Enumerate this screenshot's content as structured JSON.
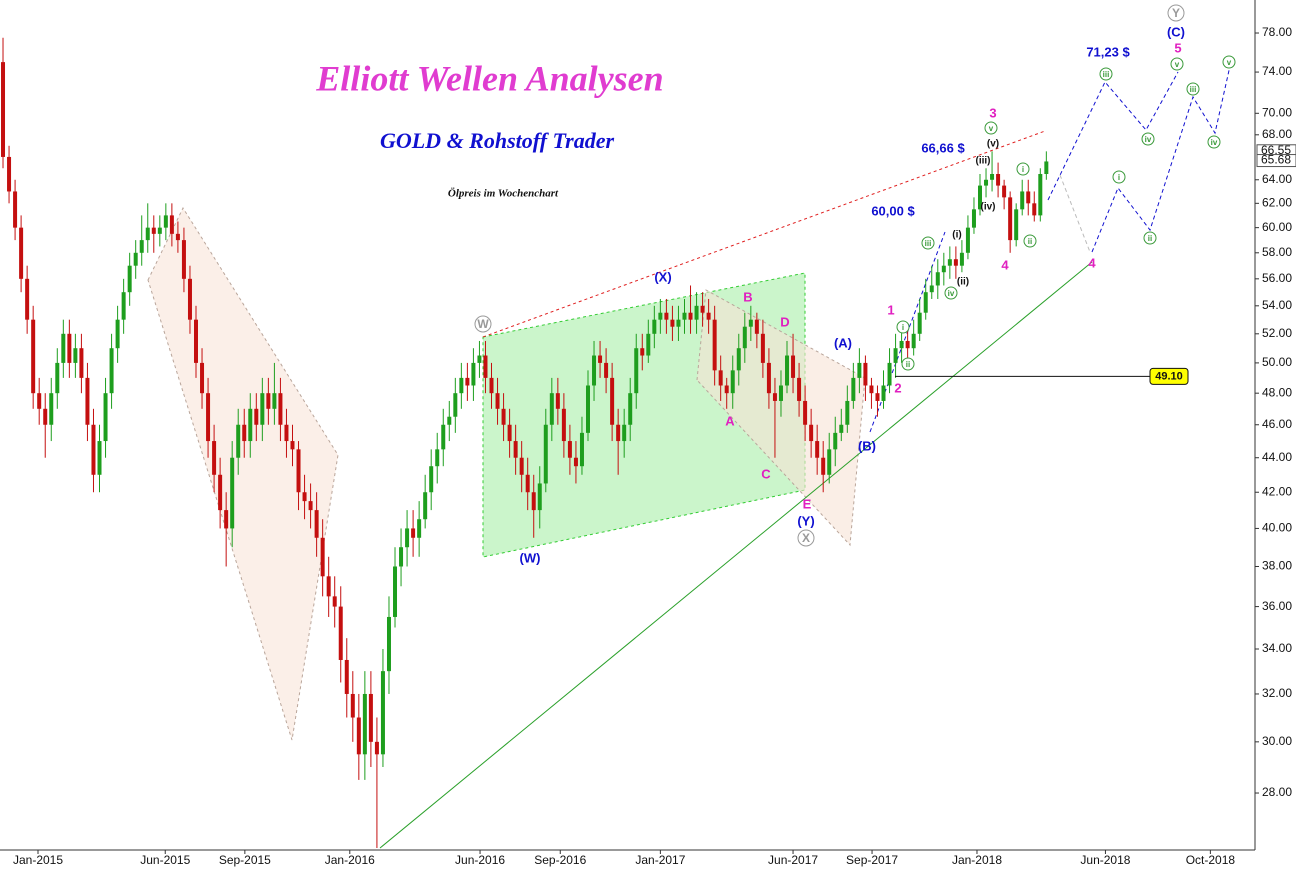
{
  "chart_data": {
    "type": "candlestick",
    "title": "Elliott Wellen Analysen",
    "subtitle": "GOLD & Rohstoff Trader",
    "caption": "Ölpreis im Wochenchart",
    "up_color": "#1e9e1e",
    "down_color": "#c40f0f",
    "log_scale": true,
    "ylim": [
      25.93,
      81.55
    ],
    "xlim": [
      -0.5,
      207.6
    ],
    "yticks": [
      {
        "value": 28,
        "label": "28.00"
      },
      {
        "value": 30,
        "label": "30.00"
      },
      {
        "value": 32,
        "label": "32.00"
      },
      {
        "value": 34,
        "label": "34.00"
      },
      {
        "value": 36,
        "label": "36.00"
      },
      {
        "value": 38,
        "label": "38.00"
      },
      {
        "value": 40,
        "label": "40.00"
      },
      {
        "value": 42,
        "label": "42.00"
      },
      {
        "value": 44,
        "label": "44.00"
      },
      {
        "value": 46,
        "label": "46.00"
      },
      {
        "value": 48,
        "label": "48.00"
      },
      {
        "value": 50,
        "label": "50.00"
      },
      {
        "value": 52,
        "label": "52.00"
      },
      {
        "value": 54,
        "label": "54.00"
      },
      {
        "value": 56,
        "label": "56.00"
      },
      {
        "value": 58,
        "label": "58.00"
      },
      {
        "value": 60,
        "label": "60.00"
      },
      {
        "value": 62,
        "label": "62.00"
      },
      {
        "value": 64,
        "label": "64.00"
      },
      {
        "value": 68,
        "label": "68.00"
      },
      {
        "value": 70,
        "label": "70.00"
      },
      {
        "value": 74,
        "label": "74.00"
      },
      {
        "value": 78,
        "label": "78.00"
      }
    ],
    "last_prices": [
      66.55,
      65.68
    ],
    "xticks": [
      {
        "value": 5.8,
        "label": "Jan-2015"
      },
      {
        "value": 26.9,
        "label": "Jun-2015"
      },
      {
        "value": 40.1,
        "label": "Sep-2015"
      },
      {
        "value": 57.5,
        "label": "Jan-2016"
      },
      {
        "value": 79.1,
        "label": "Jun-2016"
      },
      {
        "value": 92.4,
        "label": "Sep-2016"
      },
      {
        "value": 109,
        "label": "Jan-2017"
      },
      {
        "value": 131,
        "label": "Jun-2017"
      },
      {
        "value": 144.1,
        "label": "Sep-2017"
      },
      {
        "value": 161.5,
        "label": "Jan-2018"
      },
      {
        "value": 182.8,
        "label": "Jun-2018"
      },
      {
        "value": 200.2,
        "label": "Oct-2018"
      }
    ],
    "level": {
      "value": 49.1,
      "label": "49.10"
    },
    "ohlc": [
      [
        75,
        77.5,
        65,
        66
      ],
      [
        66,
        67,
        62,
        63
      ],
      [
        63,
        64,
        59,
        60
      ],
      [
        60,
        61,
        55,
        56
      ],
      [
        56,
        57,
        52,
        53
      ],
      [
        53,
        54,
        47,
        48
      ],
      [
        48,
        49,
        46,
        47
      ],
      [
        47,
        48,
        44,
        46
      ],
      [
        46,
        49,
        45,
        48
      ],
      [
        48,
        51,
        47,
        50
      ],
      [
        50,
        53,
        49,
        52
      ],
      [
        52,
        53,
        49,
        50
      ],
      [
        50,
        52,
        49,
        51
      ],
      [
        51,
        52,
        48,
        49
      ],
      [
        49,
        50,
        45,
        46
      ],
      [
        46,
        47,
        42,
        43
      ],
      [
        43,
        46,
        42,
        45
      ],
      [
        45,
        49,
        44,
        48
      ],
      [
        48,
        52,
        47,
        51
      ],
      [
        51,
        54,
        50,
        53
      ],
      [
        53,
        56,
        52,
        55
      ],
      [
        55,
        58,
        54,
        57
      ],
      [
        57,
        59,
        56,
        58
      ],
      [
        58,
        61,
        57,
        59
      ],
      [
        59,
        62,
        58,
        60
      ],
      [
        60,
        61,
        58,
        59.5
      ],
      [
        59.5,
        61,
        58.5,
        60
      ],
      [
        60,
        62,
        59,
        61
      ],
      [
        61,
        62,
        58.5,
        59.5
      ],
      [
        59.5,
        60.5,
        58,
        59
      ],
      [
        59,
        60,
        55,
        56
      ],
      [
        56,
        57,
        52,
        53
      ],
      [
        53,
        54,
        49,
        50
      ],
      [
        50,
        51,
        47,
        48
      ],
      [
        48,
        49,
        44,
        45
      ],
      [
        45,
        46,
        42,
        43
      ],
      [
        43,
        44,
        40,
        41
      ],
      [
        41,
        42,
        38,
        40
      ],
      [
        40,
        45,
        39,
        44
      ],
      [
        44,
        47,
        43,
        46
      ],
      [
        46,
        47,
        44,
        45
      ],
      [
        45,
        48,
        44,
        47
      ],
      [
        47,
        48,
        45,
        46
      ],
      [
        46,
        49,
        45,
        48
      ],
      [
        48,
        49,
        46,
        47
      ],
      [
        47,
        50,
        46,
        48
      ],
      [
        48,
        49,
        45,
        46
      ],
      [
        46,
        47,
        44,
        45
      ],
      [
        45,
        46,
        43.5,
        44.5
      ],
      [
        44.5,
        45,
        41,
        42
      ],
      [
        42,
        43,
        40.5,
        41.5
      ],
      [
        41.5,
        42.5,
        40,
        41
      ],
      [
        41,
        42,
        38.5,
        39.5
      ],
      [
        39.5,
        40.5,
        36.5,
        37.5
      ],
      [
        37.5,
        38.5,
        35.5,
        36.5
      ],
      [
        36.5,
        37.5,
        35,
        36
      ],
      [
        36,
        37,
        32.5,
        33.5
      ],
      [
        33.5,
        34.5,
        31,
        32
      ],
      [
        32,
        33,
        30,
        31
      ],
      [
        31,
        32,
        28.5,
        29.5
      ],
      [
        29.5,
        33,
        28.5,
        32
      ],
      [
        32,
        33,
        29,
        30
      ],
      [
        30,
        31,
        26,
        29.5
      ],
      [
        29.5,
        34,
        29,
        33
      ],
      [
        33,
        36.5,
        32,
        35.5
      ],
      [
        35.5,
        39,
        35,
        38
      ],
      [
        38,
        40,
        37,
        39
      ],
      [
        39,
        41,
        38,
        40
      ],
      [
        40,
        41,
        38.5,
        39.5
      ],
      [
        39.5,
        41.5,
        38.5,
        40.5
      ],
      [
        40.5,
        43,
        40,
        42
      ],
      [
        42,
        44.5,
        41,
        43.5
      ],
      [
        43.5,
        45.5,
        42.5,
        44.5
      ],
      [
        44.5,
        47,
        43.5,
        46
      ],
      [
        46,
        47.5,
        45,
        46.5
      ],
      [
        46.5,
        49,
        45.5,
        48
      ],
      [
        48,
        50,
        47,
        49
      ],
      [
        49,
        50,
        47.5,
        48.5
      ],
      [
        48.5,
        51,
        47.5,
        50
      ],
      [
        50,
        51.5,
        49,
        50.5
      ],
      [
        50.5,
        51.5,
        48,
        49
      ],
      [
        49,
        50,
        47,
        48
      ],
      [
        48,
        49,
        46,
        47
      ],
      [
        47,
        48,
        45,
        46
      ],
      [
        46,
        47,
        44,
        45
      ],
      [
        45,
        46,
        43,
        44
      ],
      [
        44,
        45,
        42,
        43
      ],
      [
        43,
        44,
        41,
        42
      ],
      [
        42,
        43,
        39.5,
        41
      ],
      [
        41,
        43.5,
        40,
        42.5
      ],
      [
        42.5,
        47,
        42,
        46
      ],
      [
        46,
        49,
        45,
        48
      ],
      [
        48,
        49,
        46,
        47
      ],
      [
        47,
        48,
        44,
        45
      ],
      [
        45,
        46,
        43,
        44
      ],
      [
        44,
        45,
        42.5,
        43.5
      ],
      [
        43.5,
        46.5,
        43,
        45.5
      ],
      [
        45.5,
        49.5,
        45,
        48.5
      ],
      [
        48.5,
        51.5,
        47.5,
        50.5
      ],
      [
        50.5,
        51.5,
        49,
        50
      ],
      [
        50,
        51,
        48,
        49
      ],
      [
        49,
        50,
        45,
        46
      ],
      [
        46,
        47,
        43,
        45
      ],
      [
        45,
        47,
        44,
        46
      ],
      [
        46,
        49,
        45,
        48
      ],
      [
        48,
        52,
        47,
        51
      ],
      [
        51,
        52,
        49.5,
        50.5
      ],
      [
        50.5,
        53,
        50,
        52
      ],
      [
        52,
        54,
        51,
        53
      ],
      [
        53,
        54.5,
        52,
        53.5
      ],
      [
        53.5,
        54.5,
        52,
        53
      ],
      [
        53,
        54,
        51.5,
        52.5
      ],
      [
        52.5,
        54,
        51.5,
        53
      ],
      [
        53,
        54.5,
        52,
        53.5
      ],
      [
        53.5,
        55.5,
        52,
        53
      ],
      [
        53,
        55,
        52,
        54
      ],
      [
        54,
        55,
        52.5,
        53.5
      ],
      [
        53.5,
        54.5,
        52,
        53
      ],
      [
        53,
        54,
        48.5,
        49.5
      ],
      [
        49.5,
        50.5,
        47.5,
        48.5
      ],
      [
        48.5,
        49,
        47,
        48
      ],
      [
        48,
        50.5,
        47,
        49.5
      ],
      [
        49.5,
        52,
        48.5,
        51
      ],
      [
        51,
        53.5,
        50,
        52.5
      ],
      [
        52.5,
        54,
        51.5,
        53
      ],
      [
        53,
        53.5,
        51,
        52
      ],
      [
        52,
        53,
        49,
        50
      ],
      [
        50,
        51,
        47,
        48
      ],
      [
        48,
        49,
        44,
        47.5
      ],
      [
        47.5,
        49.5,
        46.5,
        48.5
      ],
      [
        48.5,
        51.5,
        48,
        50.5
      ],
      [
        50.5,
        52,
        48,
        49
      ],
      [
        49,
        50,
        46.5,
        47.5
      ],
      [
        47.5,
        48.5,
        45,
        46
      ],
      [
        46,
        47,
        44,
        45
      ],
      [
        45,
        46,
        43,
        44
      ],
      [
        44,
        45,
        42,
        43
      ],
      [
        43,
        45.5,
        42.5,
        44.5
      ],
      [
        44.5,
        46.5,
        43.5,
        45.5
      ],
      [
        45.5,
        47,
        45,
        46
      ],
      [
        46,
        48.5,
        45.5,
        47.5
      ],
      [
        47.5,
        50,
        47,
        49
      ],
      [
        49,
        51,
        48,
        50
      ],
      [
        50,
        50.5,
        47.5,
        48.5
      ],
      [
        48.5,
        49,
        47,
        48
      ],
      [
        48,
        48.5,
        46.5,
        47.5
      ],
      [
        47.5,
        49.5,
        47,
        48.5
      ],
      [
        48.5,
        51,
        48,
        50
      ],
      [
        50,
        52,
        49,
        51
      ],
      [
        51,
        52.5,
        50,
        51.5
      ],
      [
        51.5,
        52.5,
        50,
        51
      ],
      [
        51,
        53,
        50.5,
        52
      ],
      [
        52,
        54.5,
        51.5,
        53.5
      ],
      [
        53.5,
        56,
        53,
        55
      ],
      [
        55,
        57,
        54.5,
        55.5
      ],
      [
        55.5,
        57.5,
        54.5,
        56.5
      ],
      [
        56.5,
        58,
        55.5,
        57
      ],
      [
        57,
        58.5,
        56,
        57.5
      ],
      [
        57.5,
        58.5,
        56,
        57
      ],
      [
        57,
        59,
        56.5,
        58
      ],
      [
        58,
        61,
        57.5,
        60
      ],
      [
        60,
        62.5,
        59.5,
        61.5
      ],
      [
        61.5,
        64.5,
        61,
        63.5
      ],
      [
        63.5,
        65,
        62.5,
        64
      ],
      [
        64,
        66.5,
        63,
        64.5
      ],
      [
        64.5,
        65.5,
        62.5,
        63.5
      ],
      [
        63.5,
        64,
        61.5,
        62.5
      ],
      [
        62.5,
        63,
        58,
        59
      ],
      [
        59,
        62,
        58.5,
        61.5
      ],
      [
        61.5,
        64,
        61,
        63
      ],
      [
        63,
        64,
        61,
        62
      ],
      [
        62,
        63,
        60.5,
        61
      ],
      [
        61,
        65,
        60.5,
        64.5
      ],
      [
        64.5,
        66.5,
        64,
        65.6
      ]
    ],
    "annotations": [
      {
        "text": "(X)",
        "color": "#1010d0"
      },
      {
        "text": "(W)",
        "color": "#1010d0"
      },
      {
        "text": "(Y)",
        "color": "#1010d0"
      },
      {
        "text": "(A)",
        "color": "#1010d0"
      },
      {
        "text": "(B)",
        "color": "#1010d0"
      },
      {
        "text": "(C)",
        "color": "#1010d0"
      },
      {
        "text": "66,66 $",
        "color": "#1010d0"
      },
      {
        "text": "60,00 $",
        "color": "#1010d0"
      },
      {
        "text": "71,23 $",
        "color": "#1010d0"
      },
      {
        "text": "B",
        "color": "#e020c0"
      },
      {
        "text": "D",
        "color": "#e020c0"
      },
      {
        "text": "A",
        "color": "#e020c0"
      },
      {
        "text": "C",
        "color": "#e020c0"
      },
      {
        "text": "E",
        "color": "#e020c0"
      },
      {
        "text": "1",
        "color": "#e020c0"
      },
      {
        "text": "2",
        "color": "#e020c0"
      },
      {
        "text": "3",
        "color": "#e020c0"
      },
      {
        "text": "4",
        "color": "#e020c0"
      },
      {
        "text": "4",
        "color": "#e020c0"
      },
      {
        "text": "5",
        "color": "#e020c0"
      },
      {
        "text": "W",
        "color": "#999999",
        "circled": true
      },
      {
        "text": "X",
        "color": "#999999",
        "circled": true
      },
      {
        "text": "Y",
        "color": "#999999",
        "circled": true
      },
      {
        "text": "(v)",
        "color": "#111111"
      },
      {
        "text": "(iii)",
        "color": "#111111"
      },
      {
        "text": "(iv)",
        "color": "#111111"
      },
      {
        "text": "(i)",
        "color": "#111111"
      },
      {
        "text": "(ii)",
        "color": "#111111"
      },
      {
        "text": "v",
        "color": "#3a9a3a",
        "circled": true
      },
      {
        "text": "i",
        "color": "#3a9a3a",
        "circled": true
      },
      {
        "text": "ii",
        "color": "#3a9a3a",
        "circled": true
      },
      {
        "text": "iii",
        "color": "#3a9a3a",
        "circled": true
      },
      {
        "text": "iv",
        "color": "#3a9a3a",
        "circled": true
      },
      {
        "text": "i",
        "color": "#3a9a3a",
        "circled": true
      },
      {
        "text": "ii",
        "color": "#3a9a3a",
        "circled": true
      },
      {
        "text": "iii",
        "color": "#3a9a3a",
        "circled": true
      },
      {
        "text": "iv",
        "color": "#3a9a3a",
        "circled": true
      },
      {
        "text": "v",
        "color": "#3a9a3a",
        "circled": true
      },
      {
        "text": "i",
        "color": "#3a9a3a",
        "circled": true
      },
      {
        "text": "ii",
        "color": "#3a9a3a",
        "circled": true
      },
      {
        "text": "iii",
        "color": "#3a9a3a",
        "circled": true
      },
      {
        "text": "iv",
        "color": "#3a9a3a",
        "circled": true
      },
      {
        "text": "v",
        "color": "#3a9a3a",
        "circled": true
      }
    ]
  }
}
